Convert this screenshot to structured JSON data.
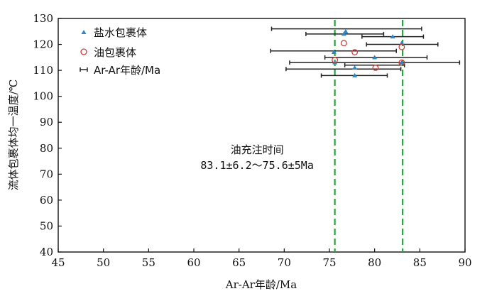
{
  "chart_data": {
    "type": "scatter",
    "title": "",
    "xlabel": "Ar-Ar年龄/Ma",
    "ylabel": "流体包裹体均一温度/℃",
    "xlim": [
      45,
      90
    ],
    "ylim": [
      40,
      130
    ],
    "xticks": [
      45,
      50,
      55,
      60,
      65,
      70,
      75,
      80,
      85,
      90
    ],
    "yticks": [
      40,
      50,
      60,
      70,
      80,
      90,
      100,
      110,
      120,
      130
    ],
    "grid": false,
    "legend_position": "top-left",
    "series": [
      {
        "name": "盐水包裹体",
        "marker": "triangle",
        "color": "#2e86c8",
        "points": [
          {
            "x": 76.8,
            "y": 125.0
          },
          {
            "x": 76.6,
            "y": 124.0
          },
          {
            "x": 82.0,
            "y": 123.0
          },
          {
            "x": 83.0,
            "y": 120.5
          },
          {
            "x": 75.5,
            "y": 117.0
          },
          {
            "x": 80.0,
            "y": 115.0
          },
          {
            "x": 75.6,
            "y": 113.0
          },
          {
            "x": 83.0,
            "y": 113.0
          },
          {
            "x": 77.8,
            "y": 111.0
          },
          {
            "x": 77.8,
            "y": 108.0
          }
        ]
      },
      {
        "name": "油包裹体",
        "marker": "circle-open",
        "color": "#d13a3a",
        "points": [
          {
            "x": 76.6,
            "y": 120.5
          },
          {
            "x": 83.0,
            "y": 119.0
          },
          {
            "x": 77.8,
            "y": 117.0
          },
          {
            "x": 75.6,
            "y": 114.0
          },
          {
            "x": 83.0,
            "y": 113.0
          },
          {
            "x": 80.1,
            "y": 111.0
          }
        ]
      },
      {
        "name": "Ar-Ar年龄/Ma",
        "marker": "errorbar",
        "color": "#222222",
        "errorbars": [
          {
            "xmin": 68.6,
            "xmax": 85.2,
            "y": 126.0
          },
          {
            "xmin": 72.4,
            "xmax": 81.0,
            "y": 124.0
          },
          {
            "xmin": 78.6,
            "xmax": 85.4,
            "y": 123.0
          },
          {
            "xmin": 79.1,
            "xmax": 87.0,
            "y": 120.0
          },
          {
            "xmin": 68.5,
            "xmax": 82.4,
            "y": 117.5
          },
          {
            "xmin": 74.5,
            "xmax": 85.8,
            "y": 115.0
          },
          {
            "xmin": 70.6,
            "xmax": 89.4,
            "y": 113.0
          },
          {
            "xmin": 76.7,
            "xmax": 83.3,
            "y": 112.0
          },
          {
            "xmin": 70.2,
            "xmax": 82.9,
            "y": 110.5
          },
          {
            "xmin": 74.1,
            "xmax": 81.4,
            "y": 108.0
          }
        ]
      }
    ],
    "reference_lines": [
      {
        "x": 75.6,
        "color": "#2ea043",
        "style": "dashed"
      },
      {
        "x": 83.1,
        "color": "#2ea043",
        "style": "dashed"
      }
    ],
    "annotations": [
      {
        "text": "油充注时间",
        "x": 67.0,
        "y": 78.0
      },
      {
        "text": "83.1±6.2～75.6±5Ma",
        "x": 67.0,
        "y": 72.0
      }
    ]
  }
}
